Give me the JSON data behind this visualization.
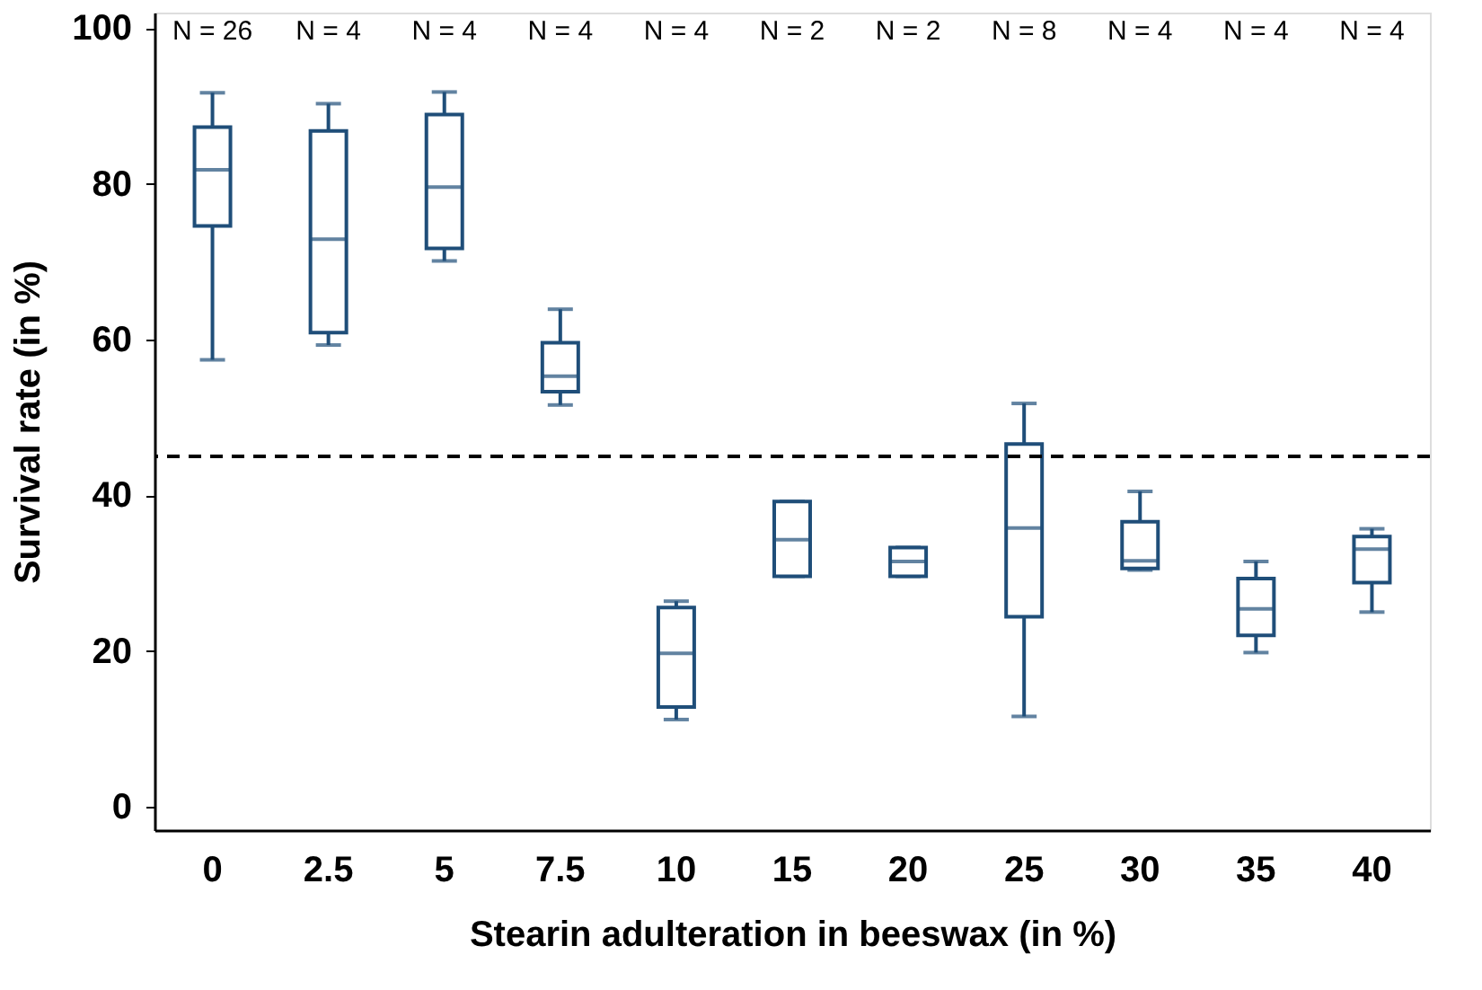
{
  "chart_data": {
    "type": "box",
    "xlabel": "Stearin adulteration in beeswax (in %)",
    "ylabel": "Survival rate (in %)",
    "categories": [
      "0",
      "2.5",
      "5",
      "7.5",
      "10",
      "15",
      "20",
      "25",
      "30",
      "35",
      "40"
    ],
    "boxes": [
      {
        "low": 57.4,
        "q1": 74.6,
        "median": 81.8,
        "q3": 87.3,
        "high": 91.7
      },
      {
        "low": 59.3,
        "q1": 60.9,
        "median": 72.9,
        "q3": 86.8,
        "high": 90.3
      },
      {
        "low": 70.1,
        "q1": 71.7,
        "median": 79.6,
        "q3": 88.9,
        "high": 91.8
      },
      {
        "low": 51.6,
        "q1": 53.3,
        "median": 55.3,
        "q3": 59.6,
        "high": 63.9
      },
      {
        "low": 11.2,
        "q1": 12.8,
        "median": 19.7,
        "q3": 25.6,
        "high": 26.4
      },
      {
        "low": 29.6,
        "q1": 29.6,
        "median": 34.3,
        "q3": 39.2,
        "high": 39.2
      },
      {
        "low": 29.6,
        "q1": 29.6,
        "median": 31.5,
        "q3": 33.3,
        "high": 33.3
      },
      {
        "low": 11.6,
        "q1": 24.4,
        "median": 35.8,
        "q3": 46.6,
        "high": 51.8
      },
      {
        "low": 30.4,
        "q1": 30.6,
        "median": 31.6,
        "q3": 36.6,
        "high": 40.5
      },
      {
        "low": 19.8,
        "q1": 22.0,
        "median": 25.4,
        "q3": 29.3,
        "high": 31.5
      },
      {
        "low": 25.0,
        "q1": 28.8,
        "median": 33.1,
        "q3": 34.7,
        "high": 35.7
      }
    ],
    "color": "#1f4e79",
    "ylim": [
      -3,
      102
    ],
    "yticks": [
      0,
      20,
      40,
      60,
      80,
      100
    ],
    "grid": false,
    "ref_lines": [
      {
        "axis": "y",
        "value": 45,
        "color": "#000000",
        "line_style": "dashed"
      }
    ],
    "annotations": [
      "N = 26",
      "N = 4",
      "N = 4",
      "N = 4",
      "N = 4",
      "N = 2",
      "N = 2",
      "N = 8",
      "N = 4",
      "N = 4",
      "N = 4"
    ]
  }
}
